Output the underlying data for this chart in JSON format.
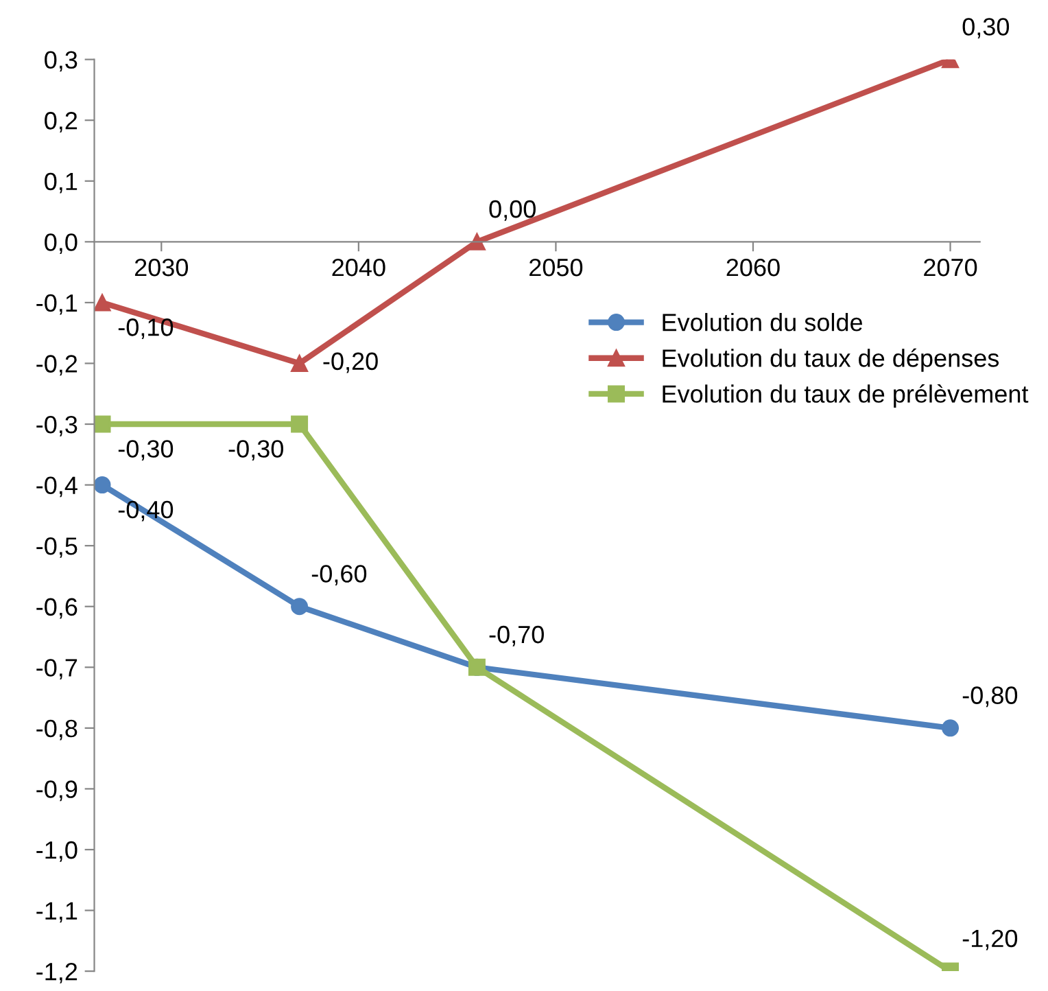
{
  "chart_data": {
    "type": "line",
    "x": [
      2027,
      2037,
      2046,
      2070
    ],
    "series": [
      {
        "name": "Evolution du solde",
        "color": "#4f81bd",
        "marker": "circle",
        "values": [
          -0.4,
          -0.6,
          -0.7,
          -0.8
        ],
        "value_labels": [
          "-0,40",
          "-0,60",
          "-0,70",
          "-0,80"
        ]
      },
      {
        "name": "Evolution du taux de dépenses",
        "color": "#c0504d",
        "marker": "triangle",
        "values": [
          -0.1,
          -0.2,
          0.0,
          0.3
        ],
        "value_labels": [
          "-0,10",
          "-0,20",
          "0,00",
          "0,30"
        ]
      },
      {
        "name": "Evolution du taux de prélèvement",
        "color": "#9bbb59",
        "marker": "square",
        "values": [
          -0.3,
          -0.3,
          -0.7,
          -1.2
        ],
        "value_labels": [
          "-0,30",
          "-0,30",
          null,
          "-1,20"
        ]
      }
    ],
    "xlim": [
      2026.6,
      2071.5
    ],
    "xticks": [
      2030,
      2040,
      2050,
      2060,
      2070
    ],
    "ylim": [
      -1.2,
      0.3
    ],
    "yticks": [
      {
        "value": 0.3,
        "label": "0,3"
      },
      {
        "value": 0.2,
        "label": "0,2"
      },
      {
        "value": 0.1,
        "label": "0,1"
      },
      {
        "value": 0.0,
        "label": "0,0"
      },
      {
        "value": -0.1,
        "label": "-0,1"
      },
      {
        "value": -0.2,
        "label": "-0,2"
      },
      {
        "value": -0.3,
        "label": "-0,3"
      },
      {
        "value": -0.4,
        "label": "-0,4"
      },
      {
        "value": -0.5,
        "label": "-0,5"
      },
      {
        "value": -0.6,
        "label": "-0,6"
      },
      {
        "value": -0.7,
        "label": "-0,7"
      },
      {
        "value": -0.8,
        "label": "-0,8"
      },
      {
        "value": -0.9,
        "label": "-0,9"
      },
      {
        "value": -1.0,
        "label": "-1,0"
      },
      {
        "value": -1.1,
        "label": "-1,1"
      },
      {
        "value": -1.2,
        "label": "-1,2"
      }
    ],
    "grid": false,
    "legend": "right"
  }
}
